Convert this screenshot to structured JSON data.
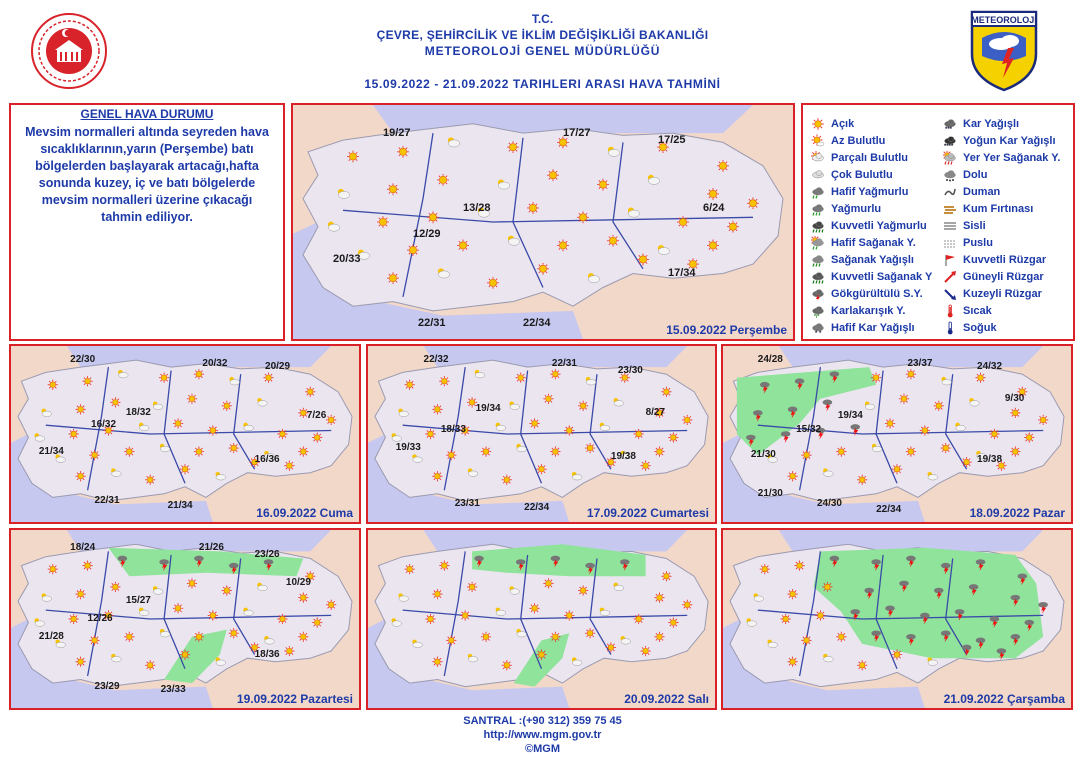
{
  "header": {
    "line1": "T.C.",
    "line2": "ÇEVRE, ŞEHİRCİLİK VE İKLİM DEĞİŞİKLİĞİ BAKANLIĞI",
    "line3": "METEOROLOJİ  GENEL  MÜDÜRLÜĞÜ",
    "line4": "15.09.2022  -  21.09.2022    TARIHLERI  ARASI  HAVA  TAHMİNİ",
    "badge_text": "METEOROLOJİ",
    "colors": {
      "header_text": "#1d3aa8",
      "frame": "#d82228",
      "map_land": "#f2d8c9",
      "rain_area": "#8fe39a"
    }
  },
  "general": {
    "title": "GENEL HAVA DURUMU",
    "text": "Mevsim normalleri altında seyreden hava sıcaklıklarının,yarın (Perşembe) batı bölgelerden başlayarak artacağı,hafta sonunda  kuzey, iç ve batı bölgelerde mevsim normalleri üzerine çıkacağı tahmin ediliyor."
  },
  "legend": {
    "left": [
      {
        "label": "Açık",
        "icon": "sun-icon"
      },
      {
        "label": "Az Bulutlu",
        "icon": "sun-small-cloud-icon"
      },
      {
        "label": "Parçalı Bulutlu",
        "icon": "partly-cloudy-icon"
      },
      {
        "label": "Çok Bulutlu",
        "icon": "cloudy-icon"
      },
      {
        "label": "Hafif Yağmurlu",
        "icon": "light-rain-icon"
      },
      {
        "label": "Yağmurlu",
        "icon": "rain-icon"
      },
      {
        "label": "Kuvvetli Yağmurlu",
        "icon": "heavy-rain-icon"
      },
      {
        "label": "Hafif Sağanak Y.",
        "icon": "light-shower-icon"
      },
      {
        "label": "Sağanak Yağışlı",
        "icon": "shower-icon"
      },
      {
        "label": "Kuvvetli Sağanak Y",
        "icon": "heavy-shower-icon"
      },
      {
        "label": "Gökgürültülü S.Y.",
        "icon": "thunderstorm-icon"
      },
      {
        "label": "Karlakarışık Y.",
        "icon": "sleet-icon"
      },
      {
        "label": "Hafif Kar Yağışlı",
        "icon": "light-snow-icon"
      }
    ],
    "right": [
      {
        "label": "Kar Yağışlı",
        "icon": "snow-icon"
      },
      {
        "label": "Yoğun Kar Yağışlı",
        "icon": "heavy-snow-icon"
      },
      {
        "label": "Yer Yer Sağanak Y.",
        "icon": "scattered-shower-icon"
      },
      {
        "label": "Dolu",
        "icon": "hail-icon"
      },
      {
        "label": "Duman",
        "icon": "smoke-icon"
      },
      {
        "label": "Kum Fırtınası",
        "icon": "sandstorm-icon"
      },
      {
        "label": "Sisli",
        "icon": "fog-icon"
      },
      {
        "label": "Puslu",
        "icon": "haze-icon"
      },
      {
        "label": "Kuvvetli Rüzgar",
        "icon": "strong-wind-icon"
      },
      {
        "label": "Güneyli Rüzgar",
        "icon": "south-wind-icon"
      },
      {
        "label": "Kuzeyli Rüzgar",
        "icon": "north-wind-icon"
      },
      {
        "label": "Sıcak",
        "icon": "hot-icon"
      },
      {
        "label": "Soğuk",
        "icon": "cold-icon"
      }
    ]
  },
  "maps": [
    {
      "date": "15.09.2022 Perşembe",
      "temps": [
        "19/27",
        "17/27",
        "17/25",
        "13/28",
        "12/29",
        "6/24",
        "20/33",
        "17/34",
        "22/31",
        "22/34"
      ],
      "rain": 0
    },
    {
      "date": "16.09.2022 Cuma",
      "temps": [
        "22/30",
        "20/32",
        "20/29",
        "18/32",
        "16/32",
        "7/26",
        "21/34",
        "16/36",
        "22/31",
        "21/34"
      ],
      "rain": 0
    },
    {
      "date": "17.09.2022 Cumartesi",
      "temps": [
        "22/32",
        "22/31",
        "23/30",
        "19/34",
        "18/33",
        "8/27",
        "19/33",
        "19/38",
        "23/31",
        "22/34"
      ],
      "rain": 0
    },
    {
      "date": "18.09.2022 Pazar",
      "temps": [
        "24/28",
        "23/37",
        "24/32",
        "19/34",
        "15/32",
        "9/30",
        "21/30",
        "19/38",
        "21/30",
        "24/30",
        "22/34"
      ],
      "rain": 1
    },
    {
      "date": "19.09.2022 Pazartesi",
      "temps": [
        "18/24",
        "21/26",
        "23/26",
        "15/27",
        "12/26",
        "10/29",
        "21/28",
        "18/36",
        "23/29",
        "23/33"
      ],
      "rain": 2
    },
    {
      "date": "20.09.2022 Salı",
      "temps": [],
      "rain": 3
    },
    {
      "date": "21.09.2022 Çarşamba",
      "temps": [],
      "rain": 4
    }
  ],
  "footer": {
    "phone": "SANTRAL :(+90 312) 359 75 45",
    "url": "http://www.mgm.gov.tr",
    "copyright": "©MGM"
  }
}
